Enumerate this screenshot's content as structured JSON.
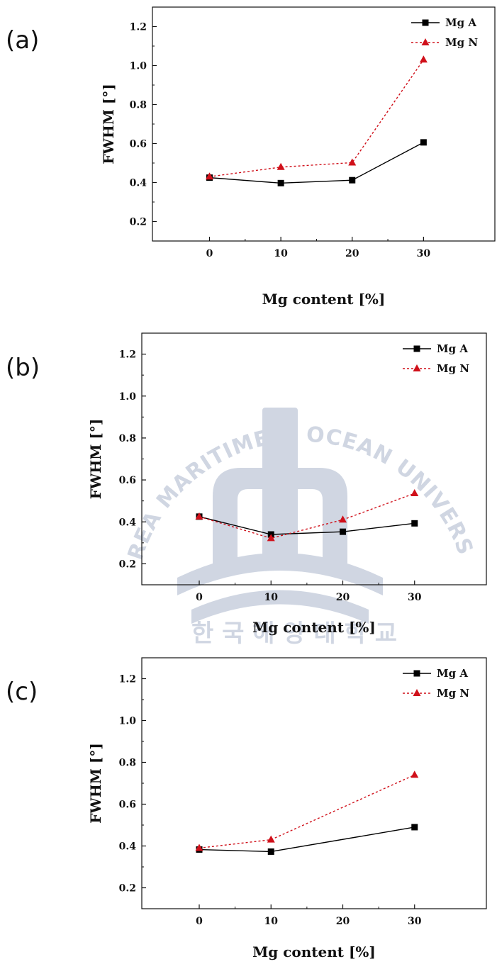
{
  "chart_data": [
    {
      "type": "line",
      "panel_label": "(a)",
      "xlabel": "Mg content [%]",
      "ylabel": "FWHM [°]",
      "x": [
        0,
        10,
        20,
        30
      ],
      "xlim": [
        -8,
        40
      ],
      "ylim": [
        0.1,
        1.3
      ],
      "xticks": [
        0,
        10,
        20,
        30
      ],
      "yticks": [
        0.2,
        0.4,
        0.6,
        0.8,
        1.0,
        1.2
      ],
      "legend_position": "top-right",
      "series": [
        {
          "name": "Mg A",
          "values": [
            0.425,
            0.397,
            0.412,
            0.606
          ],
          "color": "#000000",
          "marker": "square",
          "line": "solid"
        },
        {
          "name": "Mg N",
          "values": [
            0.43,
            0.479,
            0.502,
            1.03
          ],
          "color": "#d0101a",
          "marker": "triangle",
          "line": "dashed"
        }
      ]
    },
    {
      "type": "line",
      "panel_label": "(b)",
      "xlabel": "Mg content [%]",
      "ylabel": "FWHM [°]",
      "x": [
        0,
        10,
        20,
        30
      ],
      "xlim": [
        -8,
        40
      ],
      "ylim": [
        0.1,
        1.3
      ],
      "xticks": [
        0,
        10,
        20,
        30
      ],
      "yticks": [
        0.2,
        0.4,
        0.6,
        0.8,
        1.0,
        1.2
      ],
      "legend_position": "top-right",
      "series": [
        {
          "name": "Mg A",
          "values": [
            0.425,
            0.34,
            0.353,
            0.393
          ],
          "color": "#000000",
          "marker": "square",
          "line": "solid"
        },
        {
          "name": "Mg N",
          "values": [
            0.425,
            0.322,
            0.41,
            0.536
          ],
          "color": "#d0101a",
          "marker": "triangle",
          "line": "dashed"
        }
      ]
    },
    {
      "type": "line",
      "panel_label": "(c)",
      "xlabel": "Mg content [%]",
      "ylabel": "FWHM [°]",
      "x": [
        0,
        10,
        30
      ],
      "xlim": [
        -8,
        40
      ],
      "ylim": [
        0.1,
        1.3
      ],
      "xticks": [
        0,
        10,
        20,
        30
      ],
      "yticks": [
        0.2,
        0.4,
        0.6,
        0.8,
        1.0,
        1.2
      ],
      "legend_position": "top-right",
      "series": [
        {
          "name": "Mg A",
          "values": [
            0.383,
            0.373,
            0.49
          ],
          "color": "#000000",
          "marker": "square",
          "line": "solid"
        },
        {
          "name": "Mg N",
          "values": [
            0.39,
            0.43,
            0.74
          ],
          "color": "#d0101a",
          "marker": "triangle",
          "line": "dashed"
        }
      ]
    }
  ],
  "watermark": {
    "arc_text": "KOREA MARITIME & OCEAN UNIVERSITY",
    "bottom_text": "한 국 해 양 대 학 교",
    "color": "#c8d0de"
  }
}
